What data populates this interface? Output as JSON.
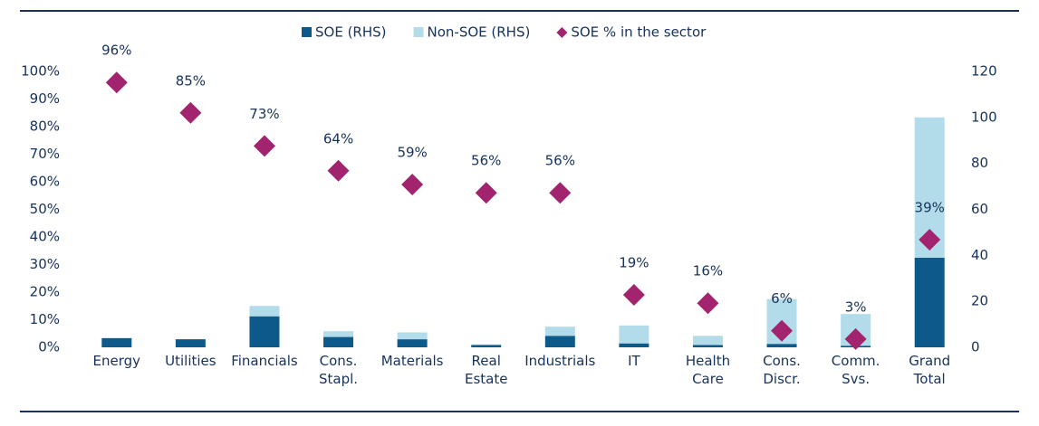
{
  "chart_data": {
    "type": "bar",
    "categories": [
      "Energy",
      "Utilities",
      "Financials",
      "Cons. Stapl.",
      "Materials",
      "Real Estate",
      "Industrials",
      "IT",
      "Health Care",
      "Cons. Discr.",
      "Comm. Svs.",
      "Grand Total"
    ],
    "series": [
      {
        "name": "SOE (RHS)",
        "type": "bar",
        "axis": "y2",
        "color": "#0d5a8a",
        "values": [
          4,
          3.5,
          13.5,
          4.5,
          3.5,
          1,
          5,
          1.7,
          1,
          1.5,
          0.7,
          39
        ]
      },
      {
        "name": "Non-SOE (RHS)",
        "type": "bar",
        "axis": "y2",
        "color": "#b3dcea",
        "values": [
          0,
          0,
          4.5,
          2.5,
          3,
          0.3,
          4,
          7.8,
          4,
          19.5,
          13.8,
          61
        ]
      },
      {
        "name": "SOE % in the sector",
        "type": "scatter",
        "marker": "diamond",
        "color": "#a3246e",
        "values": [
          96,
          85,
          73,
          64,
          59,
          56,
          56,
          19,
          16,
          6,
          3,
          39
        ],
        "value_labels": [
          "96%",
          "85%",
          "73%",
          "64%",
          "59%",
          "56%",
          "56%",
          "19%",
          "16%",
          "6%",
          "3%",
          "39%"
        ]
      }
    ],
    "stacked": true,
    "ylim": [
      0,
      100
    ],
    "yticks": [
      {
        "value": 0,
        "label": "0%"
      },
      {
        "value": 10,
        "label": "10%"
      },
      {
        "value": 20,
        "label": "20%"
      },
      {
        "value": 30,
        "label": "30%"
      },
      {
        "value": 40,
        "label": "40%"
      },
      {
        "value": 50,
        "label": "50%"
      },
      {
        "value": 60,
        "label": "60%"
      },
      {
        "value": 70,
        "label": "70%"
      },
      {
        "value": 80,
        "label": "80%"
      },
      {
        "value": 90,
        "label": "90%"
      },
      {
        "value": 100,
        "label": "100%"
      }
    ],
    "y2lim": [
      0,
      120
    ],
    "y2ticks": [
      0,
      20,
      40,
      60,
      80,
      100,
      120
    ],
    "grid": false,
    "legend": "top"
  }
}
